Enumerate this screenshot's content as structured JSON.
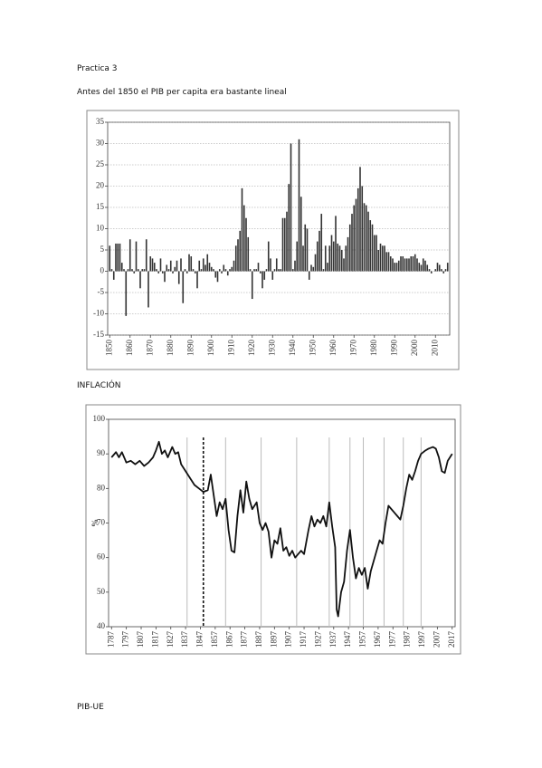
{
  "heading": "Practica 3",
  "caption": "Antes del 1850 el PIB per capita era bastante lineal",
  "section_inflation": "INFLACIÓN",
  "section_pib": "PIB-UE",
  "chart_data": [
    {
      "type": "bar",
      "color": "#333333",
      "grid": true,
      "xlim": [
        1849,
        2017
      ],
      "ylim": [
        -15,
        35
      ],
      "xticks": [
        1850,
        1860,
        1870,
        1880,
        1890,
        1900,
        1910,
        1920,
        1930,
        1940,
        1950,
        1960,
        1970,
        1980,
        1990,
        2000,
        2010
      ],
      "yticks": [
        -15,
        -10,
        -5,
        0,
        5,
        10,
        15,
        20,
        25,
        30,
        35
      ],
      "x": [
        1850,
        1851,
        1852,
        1853,
        1854,
        1855,
        1856,
        1857,
        1858,
        1859,
        1860,
        1861,
        1862,
        1863,
        1864,
        1865,
        1866,
        1867,
        1868,
        1869,
        1870,
        1871,
        1872,
        1873,
        1874,
        1875,
        1876,
        1877,
        1878,
        1879,
        1880,
        1881,
        1882,
        1883,
        1884,
        1885,
        1886,
        1887,
        1888,
        1889,
        1890,
        1891,
        1892,
        1893,
        1894,
        1895,
        1896,
        1897,
        1898,
        1899,
        1900,
        1901,
        1902,
        1903,
        1904,
        1905,
        1906,
        1907,
        1908,
        1909,
        1910,
        1911,
        1912,
        1913,
        1914,
        1915,
        1916,
        1917,
        1918,
        1919,
        1920,
        1921,
        1922,
        1923,
        1924,
        1925,
        1926,
        1927,
        1928,
        1929,
        1930,
        1931,
        1932,
        1933,
        1934,
        1935,
        1936,
        1937,
        1938,
        1939,
        1940,
        1941,
        1942,
        1943,
        1944,
        1945,
        1946,
        1947,
        1948,
        1949,
        1950,
        1951,
        1952,
        1953,
        1954,
        1955,
        1956,
        1957,
        1958,
        1959,
        1960,
        1961,
        1962,
        1963,
        1964,
        1965,
        1966,
        1967,
        1968,
        1969,
        1970,
        1971,
        1972,
        1973,
        1974,
        1975,
        1976,
        1977,
        1978,
        1979,
        1980,
        1981,
        1982,
        1983,
        1984,
        1985,
        1986,
        1987,
        1988,
        1989,
        1990,
        1991,
        1992,
        1993,
        1994,
        1995,
        1996,
        1997,
        1998,
        1999,
        2000,
        2001,
        2002,
        2003,
        2004,
        2005,
        2006,
        2007,
        2008,
        2009,
        2010,
        2011,
        2012,
        2013,
        2014,
        2015,
        2016
      ],
      "values": [
        6,
        0.5,
        -2,
        6.5,
        6.5,
        6.5,
        2,
        0.5,
        -10.5,
        0.5,
        7.5,
        0.5,
        -0.5,
        7,
        0.5,
        -4,
        0.5,
        0.5,
        7.5,
        -8.5,
        3.5,
        3,
        2,
        0.5,
        -0.5,
        3,
        -0.5,
        -2.5,
        1.5,
        0.5,
        2.5,
        -0.5,
        1,
        2.5,
        -3,
        3,
        -7.5,
        0.5,
        -0.5,
        4,
        3.5,
        0.5,
        -0.5,
        -4,
        2.5,
        0.5,
        3,
        1.5,
        4,
        2,
        1,
        0.5,
        -1.5,
        -2.5,
        0.5,
        -0.5,
        1.5,
        0.5,
        -1,
        0.5,
        1,
        2.5,
        6,
        7.5,
        9.5,
        19.5,
        15.5,
        12.5,
        8,
        0.5,
        -6.5,
        0.5,
        0.5,
        2,
        -0.5,
        -4,
        -2,
        0.5,
        7,
        3,
        -2,
        0.5,
        3,
        0.5,
        0.5,
        12.5,
        12.5,
        14,
        20.5,
        30,
        0.5,
        2.5,
        7,
        31,
        17.5,
        6,
        11,
        10,
        -2,
        1.5,
        1,
        4,
        7,
        9.5,
        13.5,
        0.5,
        6,
        2,
        6,
        8.5,
        7,
        13,
        6.5,
        6,
        5,
        3,
        6,
        8,
        11,
        13.5,
        15.5,
        17,
        19.5,
        24.5,
        20,
        16,
        15.5,
        14,
        12,
        11,
        8.5,
        8.5,
        5,
        6.5,
        6,
        6,
        4.5,
        4.5,
        3.5,
        3,
        2,
        2,
        2.5,
        3.5,
        3.5,
        3,
        3,
        3,
        3.5,
        3.5,
        4,
        3,
        2,
        1.5,
        3,
        2.5,
        1.5,
        0.5,
        -0.5,
        0,
        0.5,
        2,
        1.5,
        0.5,
        -0.5,
        0.5,
        2
      ]
    },
    {
      "type": "line",
      "color": "#111111",
      "ylabel": "%",
      "xlim": [
        1785,
        2019
      ],
      "ylim": [
        40,
        100
      ],
      "xticks": [
        1787,
        1797,
        1807,
        1817,
        1827,
        1837,
        1847,
        1857,
        1867,
        1877,
        1887,
        1897,
        1907,
        1917,
        1927,
        1937,
        1947,
        1957,
        1967,
        1977,
        1987,
        1997,
        2007,
        2017
      ],
      "yticks": [
        40,
        50,
        60,
        70,
        80,
        90,
        100
      ],
      "vlines": [
        1838,
        1864,
        1888,
        1912,
        1934,
        1948,
        1957,
        1971,
        1984,
        1996
      ],
      "dashed_vline": 1849,
      "x": [
        1787,
        1790,
        1792,
        1794,
        1797,
        1800,
        1803,
        1806,
        1809,
        1812,
        1815,
        1817,
        1819,
        1821,
        1823,
        1825,
        1828,
        1830,
        1832,
        1834,
        1837,
        1840,
        1843,
        1846,
        1849,
        1852,
        1854,
        1856,
        1858,
        1860,
        1862,
        1864,
        1866,
        1868,
        1870,
        1872,
        1874,
        1876,
        1878,
        1880,
        1882,
        1885,
        1887,
        1889,
        1891,
        1893,
        1895,
        1897,
        1899,
        1901,
        1903,
        1905,
        1907,
        1909,
        1911,
        1913,
        1915,
        1917,
        1920,
        1922,
        1924,
        1926,
        1928,
        1930,
        1932,
        1934,
        1936,
        1938,
        1939,
        1940,
        1942,
        1944,
        1946,
        1948,
        1950,
        1952,
        1954,
        1956,
        1958,
        1960,
        1962,
        1964,
        1966,
        1968,
        1970,
        1972,
        1974,
        1976,
        1978,
        1980,
        1982,
        1984,
        1986,
        1988,
        1990,
        1992,
        1994,
        1996,
        1999,
        2001,
        2004,
        2006,
        2008,
        2010,
        2012,
        2014,
        2017
      ],
      "values": [
        89,
        90.5,
        89,
        90.5,
        87.5,
        88,
        87,
        88,
        86.5,
        87.5,
        89,
        91,
        93.5,
        90,
        91,
        89,
        92,
        90,
        90.5,
        87,
        85,
        83,
        81,
        80,
        79,
        79.5,
        84,
        78,
        72,
        76,
        74,
        77,
        68,
        62,
        61.5,
        72,
        79.5,
        73,
        82,
        77,
        74,
        76,
        70,
        68,
        70,
        67.5,
        60,
        65,
        64,
        68.5,
        62,
        63,
        60.5,
        62,
        60,
        61,
        62,
        61,
        68,
        72,
        69,
        71,
        70,
        72,
        69,
        76,
        69,
        63,
        45,
        43,
        50,
        53,
        62,
        68,
        60,
        54,
        57,
        55,
        57,
        51,
        56,
        59,
        62,
        65,
        64,
        70,
        75,
        74,
        73,
        72,
        71,
        75,
        80,
        84,
        82.5,
        85,
        88,
        90,
        91,
        91.5,
        92,
        91.5,
        89,
        85,
        84.5,
        88,
        90
      ]
    }
  ]
}
